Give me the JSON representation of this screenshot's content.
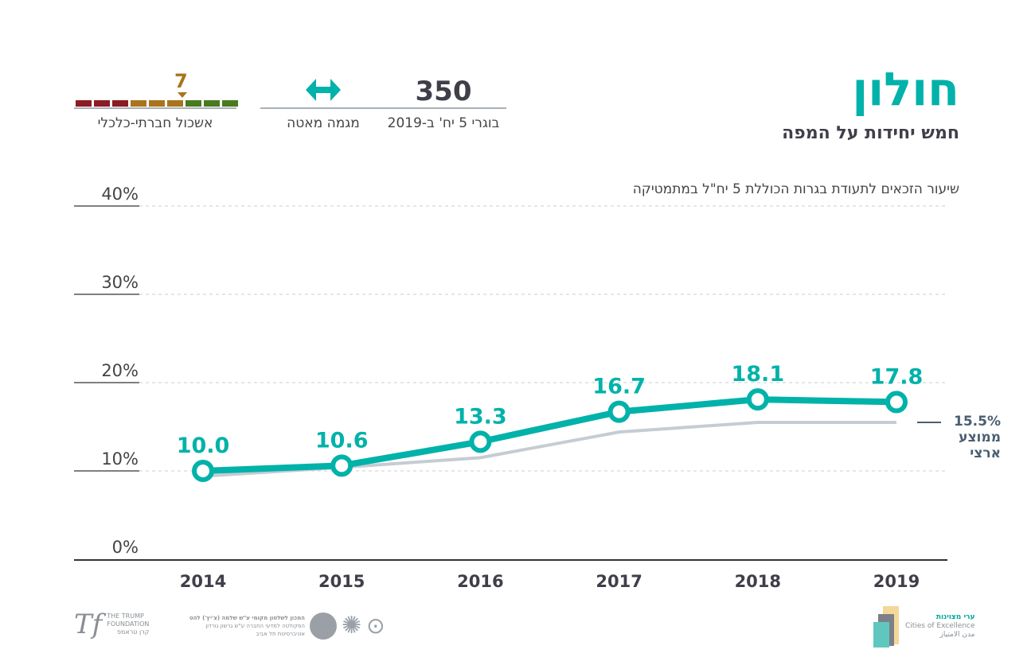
{
  "header": {
    "title": "חולון",
    "subtitle": "חמש יחידות על המפה"
  },
  "kpis": [
    {
      "value": "350",
      "label": "בוגרי 5 יח' ב-2019"
    },
    {
      "icon": "double-arrow-icon",
      "label": "מגמה מאטה"
    },
    {
      "value": "7",
      "label": "אשכול חברתי-כלכלי",
      "scale_max": 10
    }
  ],
  "colors": {
    "accent": "#00b2a9",
    "national": "#c5ccd3",
    "dark": "#3f3f4a",
    "cluster_low": "#8b1c24",
    "cluster_mid": "#a9741c",
    "cluster_high": "#4a7a1e"
  },
  "chart_data": {
    "type": "line",
    "title": "שיעור הזכאים לתעודת בגרות הכוללת 5 יח\"ל במתמטיקה",
    "categories": [
      "2014",
      "2015",
      "2016",
      "2017",
      "2018",
      "2019"
    ],
    "ylim": [
      0,
      40
    ],
    "yticks": [
      "0%",
      "10%",
      "20%",
      "30%",
      "40%"
    ],
    "series": [
      {
        "name": "חולון",
        "values": [
          10.0,
          10.6,
          13.3,
          16.7,
          18.1,
          17.8
        ],
        "labels": [
          "10.0",
          "10.6",
          "13.3",
          "16.7",
          "18.1",
          "17.8"
        ]
      },
      {
        "name": "ממוצע ארצי",
        "values": [
          9.4,
          10.4,
          11.5,
          14.4,
          15.5,
          15.5
        ]
      }
    ],
    "national_label": {
      "value": "15.5%",
      "line1": "ממוצע",
      "line2": "ארצי"
    }
  },
  "footer": {
    "trump": {
      "line1": "THE TRUMP",
      "line2": "FOUNDATION",
      "line3": "קרן טראמפ"
    },
    "institute": {
      "line1": "המכון לשלטון מקומי ע\"ש שלמה (צ'יץ') להט",
      "line2": "הפקולטה למדעי החברה ע\"ש גרשון גורדון",
      "line3": "אוניברסיטת תל אביב"
    },
    "cities": {
      "line1": "ערי מצוינות",
      "line2": "Cities of Excellence",
      "line3": "مدن الامتياز"
    }
  }
}
